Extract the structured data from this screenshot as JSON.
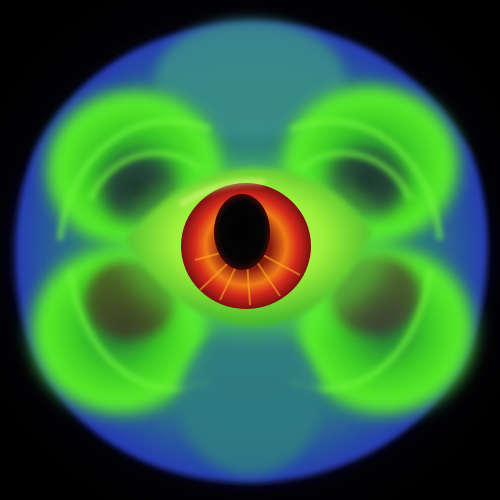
{
  "image": {
    "subject": "psychedelic-eye-artwork",
    "palette": {
      "background": "#000000",
      "outer_glow": "#2a2bd8",
      "body_teal": "#2f7f86",
      "body_green": "#44e21f",
      "highlight_lime": "#b8ff3a",
      "iris_red": "#d2271c",
      "iris_orange": "#f07a16",
      "pupil": "#050505"
    }
  }
}
